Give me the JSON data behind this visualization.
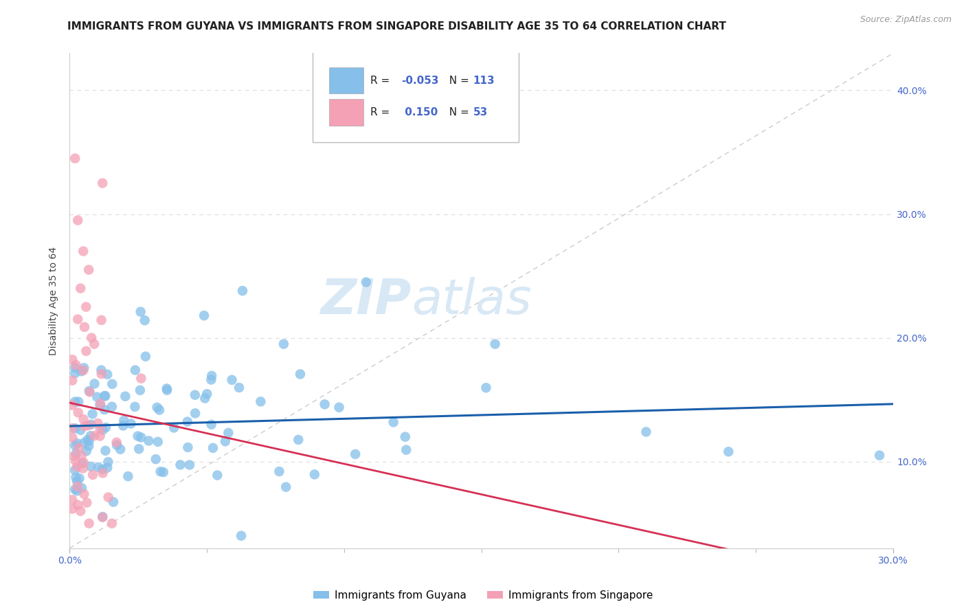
{
  "title": "IMMIGRANTS FROM GUYANA VS IMMIGRANTS FROM SINGAPORE DISABILITY AGE 35 TO 64 CORRELATION CHART",
  "source": "Source: ZipAtlas.com",
  "ylabel": "Disability Age 35 to 64",
  "legend_labels": [
    "Immigrants from Guyana",
    "Immigrants from Singapore"
  ],
  "r_guyana": -0.053,
  "n_guyana": 113,
  "r_singapore": 0.15,
  "n_singapore": 53,
  "color_guyana": "#85BFEA",
  "color_singapore": "#F4A0B5",
  "line_color_guyana": "#1A5FAB",
  "line_color_singapore": "#D63055",
  "xlim": [
    0.0,
    0.3
  ],
  "ylim": [
    0.03,
    0.43
  ],
  "xtick_ends": [
    0.0,
    0.3
  ],
  "ytick_vals": [
    0.1,
    0.2,
    0.3,
    0.4
  ],
  "watermark_zip": "ZIP",
  "watermark_atlas": "atlas",
  "background_color": "#ffffff",
  "grid_color": "#dddddd",
  "title_color": "#222222",
  "tick_color": "#4466cc",
  "axis_color": "#999999"
}
